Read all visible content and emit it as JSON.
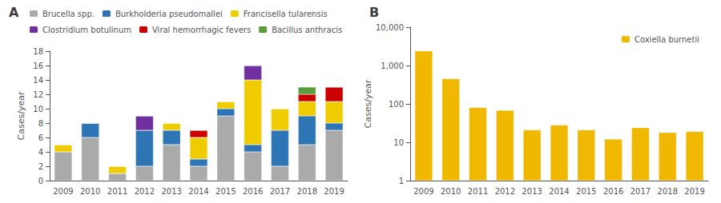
{
  "chart_data": [
    {
      "type": "bar",
      "title": "A",
      "categories": [
        "2009",
        "2010",
        "2011",
        "2012",
        "2013",
        "2014",
        "2015",
        "2016",
        "2017",
        "2018",
        "2019"
      ],
      "series": [
        {
          "name": "Brucella spp.",
          "color": "#aaaaaa",
          "values": [
            4,
            6,
            1,
            2,
            5,
            2,
            9,
            4,
            2,
            5,
            7
          ]
        },
        {
          "name": "Burkholderia pseudomallei",
          "color": "#2e75b6",
          "values": [
            0,
            2,
            0,
            5,
            2,
            1,
            1,
            1,
            5,
            4,
            1
          ]
        },
        {
          "name": "Francisella tularensis",
          "color": "#eecc00",
          "values": [
            1,
            0,
            1,
            0,
            1,
            3,
            1,
            9,
            3,
            2,
            3
          ]
        },
        {
          "name": "Clostridium botulinum",
          "color": "#7030a0",
          "values": [
            0,
            0,
            0,
            2,
            0,
            0,
            0,
            2,
            0,
            0,
            0
          ]
        },
        {
          "name": "Viral hemorrhagic fevers",
          "color": "#cc0000",
          "values": [
            0,
            0,
            0,
            0,
            0,
            1,
            0,
            0,
            0,
            1,
            2
          ]
        },
        {
          "name": "Bacillus anthracis",
          "color": "#5a9e3a",
          "values": [
            0,
            0,
            0,
            0,
            0,
            0,
            0,
            0,
            0,
            1,
            0
          ]
        }
      ],
      "ylabel": "Cases/year",
      "ylim": [
        0,
        18
      ],
      "yticks": [
        0,
        2,
        4,
        6,
        8,
        10,
        12,
        14,
        16,
        18
      ],
      "stacked": true,
      "legend": "top",
      "grid": false
    },
    {
      "type": "bar",
      "title": "B",
      "categories": [
        "2009",
        "2010",
        "2011",
        "2012",
        "2013",
        "2014",
        "2015",
        "2016",
        "2017",
        "2018",
        "2019"
      ],
      "series": [
        {
          "name": "Coxiella burnetii",
          "color": "#f0b800",
          "values": [
            2400,
            450,
            80,
            68,
            21,
            28,
            21,
            12,
            24,
            18,
            19
          ]
        }
      ],
      "ylabel": "Cases/year",
      "log": "y",
      "ylim": [
        1,
        10000
      ],
      "yticks": [
        1,
        10,
        100,
        {
          "value": 1000,
          "label": "1,000"
        },
        {
          "value": 10000,
          "label": "10,000"
        }
      ],
      "legend": "upper right",
      "grid": false
    }
  ]
}
